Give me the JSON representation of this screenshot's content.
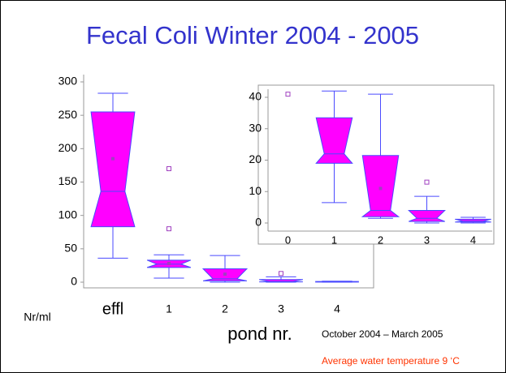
{
  "chart_data": [
    {
      "type": "box",
      "title": "Fecal Coli Winter 2004 - 2005",
      "x_label": "pond nr.",
      "y_label": "Nr/ml",
      "categories": [
        "effl",
        "1",
        "2",
        "3",
        "4"
      ],
      "boxes": [
        {
          "whisker_low": 36,
          "q1": 83,
          "median": 136,
          "q3": 255,
          "whisker_high": 283,
          "mean": 185,
          "outliers": []
        },
        {
          "whisker_low": 6,
          "q1": 22,
          "median": 27,
          "q3": 33,
          "whisker_high": 41,
          "mean": 28,
          "outliers": [
            170,
            80
          ]
        },
        {
          "whisker_low": 0,
          "q1": 2,
          "median": 5,
          "q3": 20,
          "whisker_high": 40,
          "mean": 12,
          "outliers": []
        },
        {
          "whisker_low": 0,
          "q1": 0.5,
          "median": 1,
          "q3": 4,
          "whisker_high": 8,
          "outliers": [
            13
          ]
        },
        {
          "whisker_low": 0,
          "q1": 0.2,
          "median": 0.5,
          "q3": 1,
          "whisker_high": 1.5,
          "outliers": []
        }
      ],
      "ylim": [
        0,
        300
      ],
      "yticks": [
        0,
        50,
        100,
        150,
        200,
        250,
        300
      ],
      "box_color": "#ff00ff",
      "line_color": "#4a4aff"
    },
    {
      "type": "box",
      "categories": [
        "0",
        "1",
        "2",
        "3",
        "4"
      ],
      "boxes": [
        {
          "outliers": [
            41
          ]
        },
        {
          "whisker_low": 6.5,
          "q1": 19,
          "median": 22,
          "q3": 33.5,
          "whisker_high": 42,
          "outliers": []
        },
        {
          "whisker_low": 1.5,
          "q1": 2,
          "median": 4,
          "q3": 21.5,
          "whisker_high": 41,
          "mean": 11,
          "outliers": []
        },
        {
          "whisker_low": 0,
          "q1": 0.5,
          "median": 1.5,
          "q3": 4,
          "whisker_high": 8.5,
          "outliers": [
            13
          ]
        },
        {
          "whisker_low": 0,
          "q1": 0.3,
          "median": 0.6,
          "q3": 1.2,
          "whisker_high": 1.8,
          "outliers": []
        }
      ],
      "ylim": [
        0,
        40
      ],
      "yticks": [
        0,
        10,
        20,
        30,
        40
      ],
      "box_color": "#ff00ff",
      "line_color": "#4a4aff"
    }
  ],
  "notes": [
    "October 2004 – March 2005",
    "Average water temperature 9 ‘C"
  ]
}
